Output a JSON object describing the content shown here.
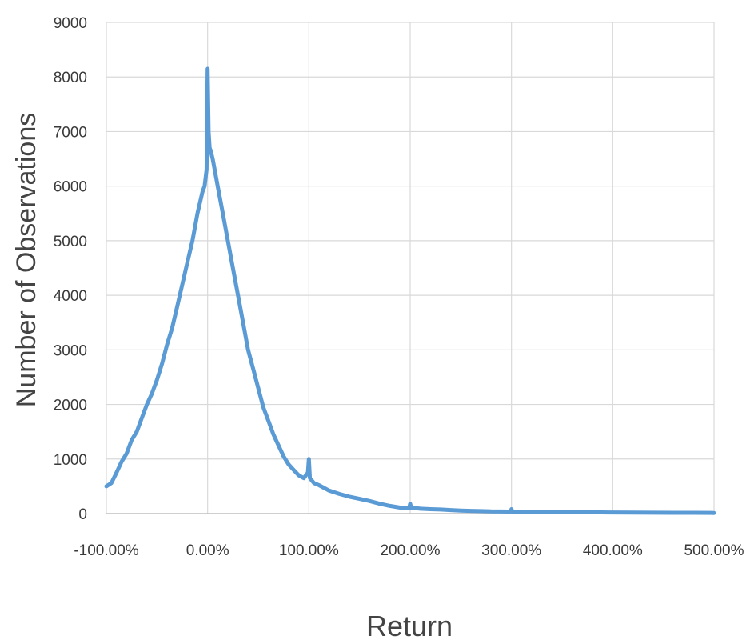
{
  "chart_data": {
    "type": "line",
    "title": "",
    "xlabel": "Return",
    "ylabel": "Number of Observations",
    "xlim": [
      -100,
      500
    ],
    "ylim": [
      0,
      9000
    ],
    "x_ticks": [
      -100,
      0,
      100,
      200,
      300,
      400,
      500
    ],
    "x_tick_labels": [
      "-100.00%",
      "0.00%",
      "100.00%",
      "200.00%",
      "300.00%",
      "400.00%",
      "500.00%"
    ],
    "y_ticks": [
      0,
      1000,
      2000,
      3000,
      4000,
      5000,
      6000,
      7000,
      8000,
      9000
    ],
    "y_tick_labels": [
      "0",
      "1000",
      "2000",
      "3000",
      "4000",
      "5000",
      "6000",
      "7000",
      "8000",
      "9000"
    ],
    "grid": true,
    "line_color": "#5b9bd5",
    "series": [
      {
        "x": [
          -100,
          -95,
          -90,
          -85,
          -80,
          -75,
          -70,
          -65,
          -60,
          -55,
          -50,
          -45,
          -40,
          -35,
          -30,
          -25,
          -20,
          -15,
          -10,
          -5,
          -3,
          -1,
          0,
          1,
          2,
          3,
          5,
          10,
          15,
          20,
          25,
          30,
          35,
          40,
          45,
          50,
          55,
          60,
          65,
          70,
          75,
          80,
          85,
          90,
          95,
          99,
          100,
          101,
          105,
          110,
          120,
          130,
          140,
          150,
          160,
          170,
          180,
          190,
          199,
          200,
          201,
          210,
          220,
          230,
          240,
          250,
          260,
          270,
          280,
          290,
          299,
          300,
          301,
          320,
          340,
          360,
          380,
          400,
          420,
          440,
          460,
          480,
          500
        ],
        "y": [
          500,
          560,
          750,
          950,
          1100,
          1350,
          1500,
          1750,
          2000,
          2200,
          2450,
          2750,
          3100,
          3400,
          3800,
          4200,
          4600,
          5000,
          5500,
          5900,
          6000,
          6300,
          8150,
          7000,
          6700,
          6650,
          6500,
          6000,
          5500,
          5000,
          4500,
          4000,
          3500,
          3000,
          2650,
          2300,
          1950,
          1700,
          1450,
          1250,
          1050,
          900,
          800,
          700,
          650,
          750,
          1000,
          650,
          560,
          520,
          420,
          360,
          310,
          270,
          230,
          180,
          140,
          110,
          100,
          180,
          110,
          90,
          80,
          75,
          65,
          55,
          50,
          45,
          40,
          38,
          36,
          80,
          35,
          30,
          27,
          25,
          23,
          20,
          18,
          16,
          15,
          14,
          12
        ]
      }
    ]
  }
}
